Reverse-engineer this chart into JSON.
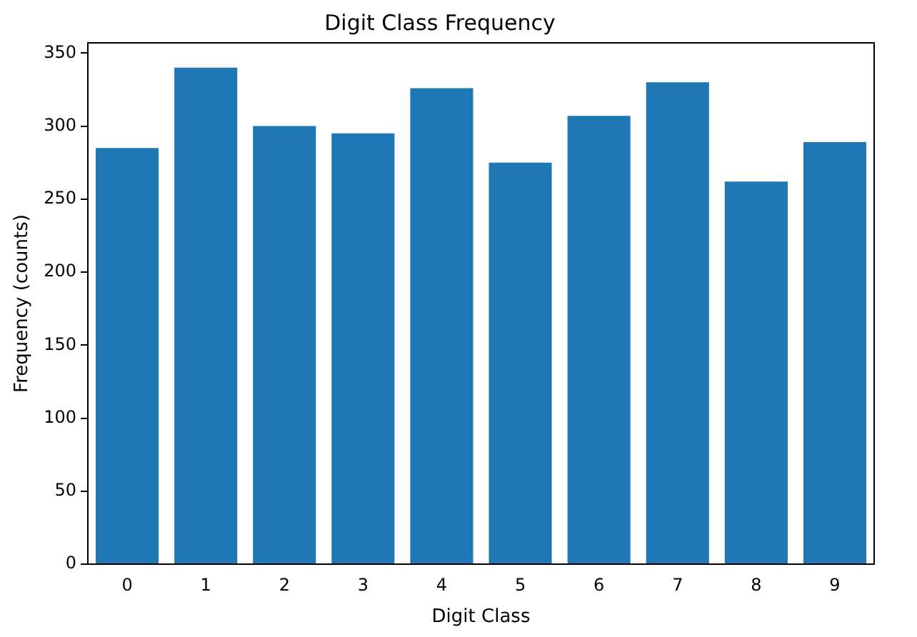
{
  "chart_data": {
    "type": "bar",
    "title": "Digit Class Frequency",
    "xlabel": "Digit Class",
    "ylabel": "Frequency (counts)",
    "categories": [
      "0",
      "1",
      "2",
      "3",
      "4",
      "5",
      "6",
      "7",
      "8",
      "9"
    ],
    "values": [
      285,
      340,
      300,
      295,
      326,
      275,
      307,
      330,
      262,
      289
    ],
    "color": "#1f77b4",
    "ylim": [
      0,
      357
    ],
    "yticks": [
      0,
      50,
      100,
      150,
      200,
      250,
      300,
      350
    ],
    "grid": false,
    "legend": false
  }
}
